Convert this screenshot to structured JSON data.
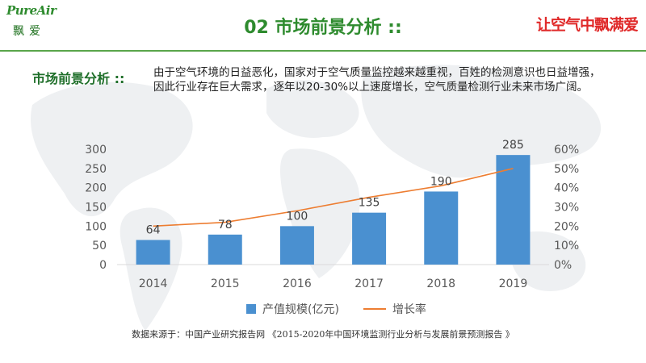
{
  "header": {
    "title": "02 市场前景分析 ::",
    "logo_left_text": "PureAir",
    "logo_left_cn": "飘爱",
    "slogan": "让空气中飘满爱"
  },
  "section": {
    "label": "市场前景分析 ::",
    "description": "由于空气环境的日益恶化，国家对于空气质量监控越来越重视，百姓的检测意识也日益增强，因此行业存在巨大需求，逐年以20-30%以上速度增长，空气质量检测行业未来市场广阔。"
  },
  "chart_data": {
    "type": "bar",
    "categories": [
      "2014",
      "2015",
      "2016",
      "2017",
      "2018",
      "2019"
    ],
    "series": [
      {
        "name": "产值规模(亿元)",
        "type": "bar",
        "axis": "left",
        "values": [
          64,
          78,
          100,
          135,
          190,
          285
        ],
        "color": "#4a90d0"
      },
      {
        "name": "增长率",
        "type": "line",
        "axis": "right",
        "values": [
          0.2,
          0.22,
          0.28,
          0.35,
          0.41,
          0.5
        ],
        "color": "#ed7d31"
      }
    ],
    "y_left": {
      "ticks": [
        "0",
        "50",
        "100",
        "150",
        "200",
        "250",
        "300"
      ],
      "ylim": [
        0,
        300
      ]
    },
    "y_right": {
      "ticks": [
        "0%",
        "10%",
        "20%",
        "30%",
        "40%",
        "50%",
        "60%"
      ],
      "ylim": [
        0,
        0.6
      ]
    },
    "grid": false,
    "legend": "bottom"
  },
  "legend": {
    "bar_label": "产值规模(亿元)",
    "line_label": "增长率"
  },
  "source": "数据来源于：中国产业研究报告网 《2015-2020年中国环境监测行业分析与发展前景预测报告 》",
  "colors": {
    "brand_green": "#2e8b2e",
    "accent_red": "#e02a2a",
    "bar": "#4a90d0",
    "line": "#ed7d31"
  }
}
